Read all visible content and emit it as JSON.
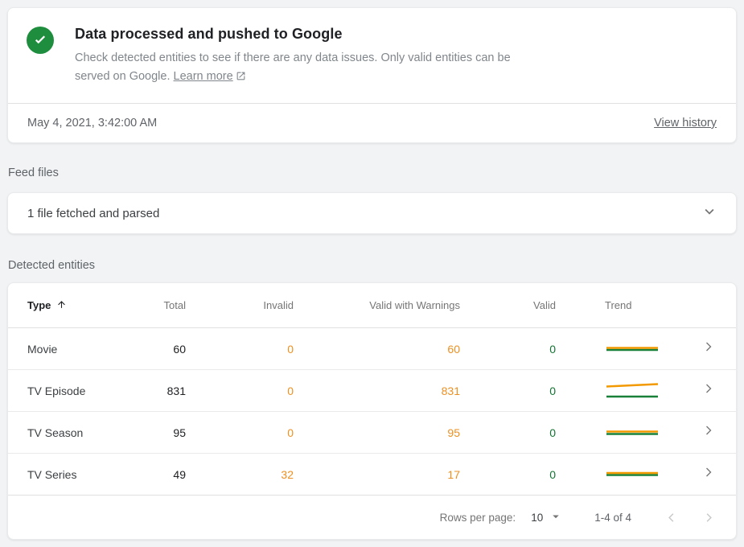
{
  "status_card": {
    "title": "Data processed and pushed to Google",
    "description": "Check detected entities to see if there are any data issues. Only valid entities can be served on Google.",
    "learn_more_label": "Learn more",
    "timestamp": "May 4, 2021, 3:42:00 AM",
    "view_history_label": "View history",
    "status_green": "#1E8E3E"
  },
  "feed_files": {
    "section_label": "Feed files",
    "summary": "1 file fetched and parsed"
  },
  "detected_entities": {
    "section_label": "Detected entities",
    "table": {
      "columns": [
        "Type",
        "Total",
        "Invalid",
        "Valid with Warnings",
        "Valid",
        "Trend"
      ],
      "sort_column": "Type",
      "sort_direction": "ascending",
      "colors": {
        "warning_orange": "#ED9021",
        "valid_green": "#137333",
        "trend_orange": "#F29900",
        "trend_green": "#188038"
      },
      "rows": [
        {
          "type": "Movie",
          "total": "60",
          "invalid": "0",
          "valid_with_warnings": "60",
          "valid": "0",
          "trend": {
            "orange": [
              2,
              10.5,
              66,
              10.5
            ],
            "green": [
              2,
              13,
              66,
              13
            ]
          }
        },
        {
          "type": "TV Episode",
          "total": "831",
          "invalid": "0",
          "valid_with_warnings": "831",
          "valid": "0",
          "trend": {
            "orange": [
              2,
              6.5,
              66,
              3.5
            ],
            "green": [
              2,
              19,
              66,
              19
            ]
          }
        },
        {
          "type": "TV Season",
          "total": "95",
          "invalid": "0",
          "valid_with_warnings": "95",
          "valid": "0",
          "trend": {
            "orange": [
              2,
              10.5,
              66,
              10.5
            ],
            "green": [
              2,
              13.5,
              66,
              13.5
            ]
          }
        },
        {
          "type": "TV Series",
          "total": "49",
          "invalid": "32",
          "valid_with_warnings": "17",
          "valid": "0",
          "trend": {
            "orange": [
              2,
              10,
              66,
              10
            ],
            "green": [
              2,
              12.5,
              66,
              12.5
            ]
          }
        }
      ]
    },
    "pagination": {
      "rows_per_page_label": "Rows per page:",
      "rows_per_page_value": "10",
      "range_label": "1-4 of 4"
    }
  }
}
